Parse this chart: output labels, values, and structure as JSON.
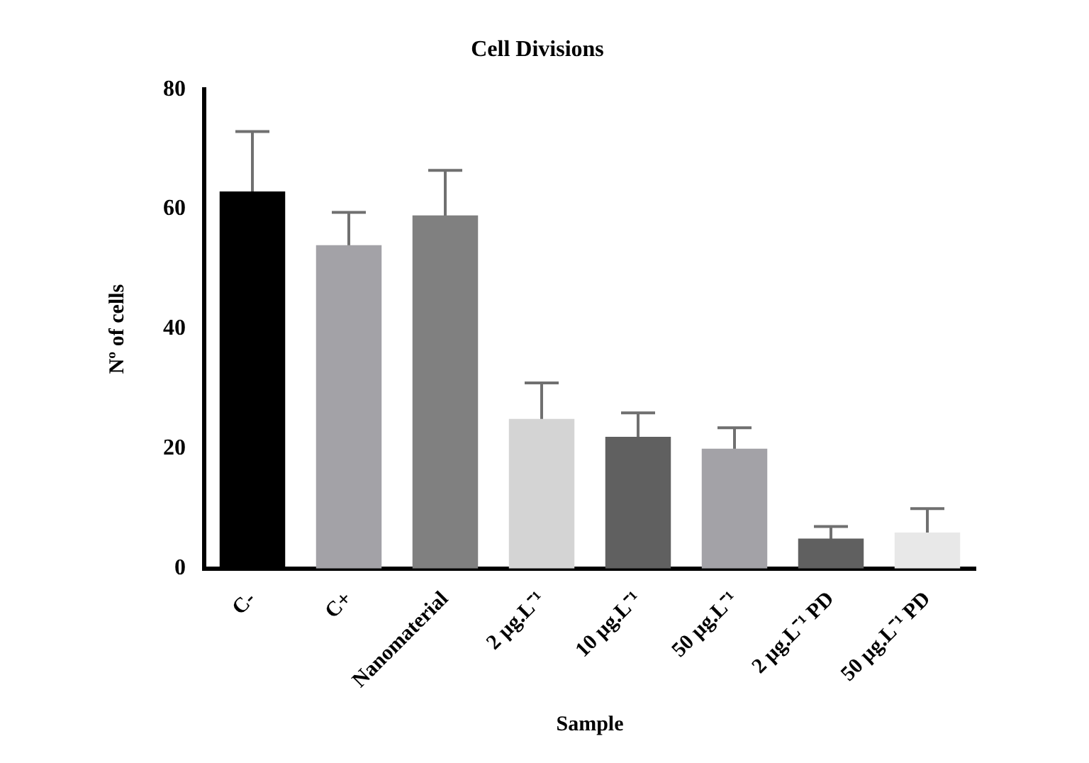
{
  "chart_data": {
    "type": "bar",
    "title": "Cell Divisions",
    "xlabel": "Sample",
    "ylabel": "Nº of cells",
    "categories": [
      "C-",
      "C+",
      "Nanomaterial",
      "2 µg.L⁻¹",
      "10 µg.L⁻¹",
      "50 µg.L⁻¹",
      "2 µg.L⁻¹ PD",
      "50 µg.L⁻¹ PD"
    ],
    "values": [
      63,
      54,
      59,
      25,
      22,
      20,
      5,
      6
    ],
    "errors": [
      10,
      5.5,
      7.5,
      6,
      4,
      3.5,
      2,
      4
    ],
    "colors": [
      "#000000",
      "#a3a2a7",
      "#808080",
      "#d4d4d4",
      "#606060",
      "#a3a2a7",
      "#606060",
      "#e8e8e8"
    ],
    "ylim": [
      0,
      80
    ],
    "yticks": [
      0,
      20,
      40,
      60,
      80
    ],
    "grid": false,
    "legend": false
  }
}
